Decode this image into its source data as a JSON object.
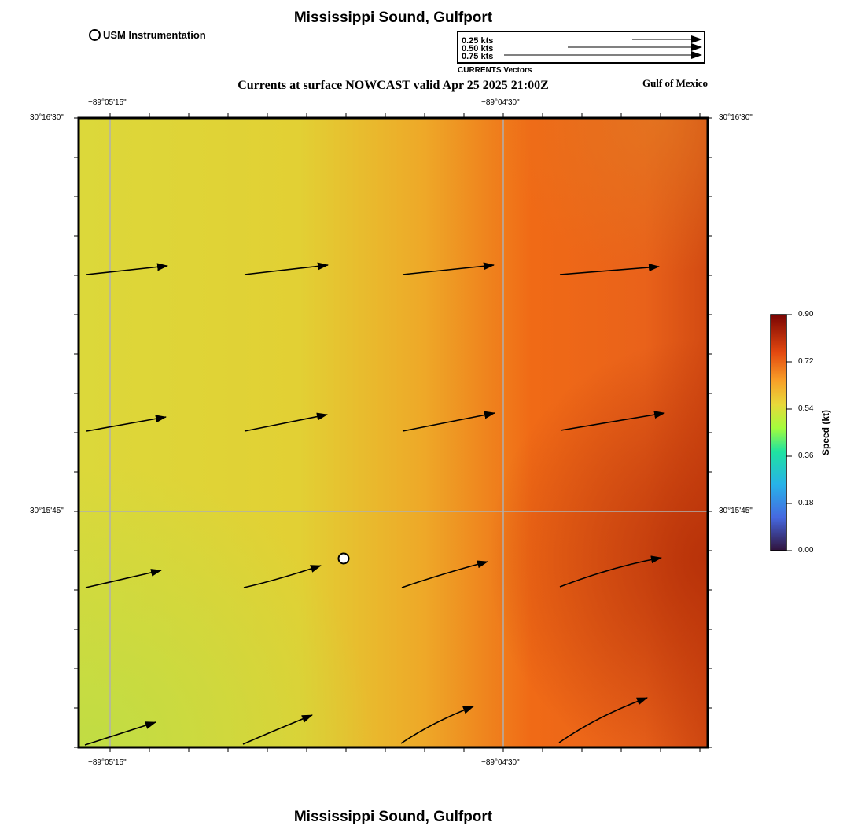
{
  "title": "Mississippi Sound, Gulfport",
  "subtitle": "Currents at surface NOWCAST valid Apr 25 2025 21:00Z",
  "region_label": "Gulf of Mexico",
  "instrument_legend": {
    "label": "USM Instrumentation",
    "icon": "open-circle-icon"
  },
  "vector_legend": {
    "rows": [
      "0.25 kts",
      "0.50 kts",
      "0.75 kts"
    ],
    "caption": "CURRENTS Vectors"
  },
  "map": {
    "lon_labels": [
      "−89°05'15\"",
      "−89°04'30\""
    ],
    "lat_labels": [
      "30°16'30\"",
      "30°15'45\""
    ],
    "arrow_color": "#000000",
    "grid_color": "#b0b0b0"
  },
  "colorbar": {
    "title": "Speed (kt)",
    "ticks": [
      "0.90",
      "0.72",
      "0.54",
      "0.36",
      "0.18",
      "0.00"
    ],
    "min": 0.0,
    "max": 0.9,
    "colormap": [
      "#30123b",
      "#4668e0",
      "#1fc9a0",
      "#a4fc3c",
      "#f8d238",
      "#f46d17",
      "#c12a04",
      "#7a0403"
    ]
  }
}
